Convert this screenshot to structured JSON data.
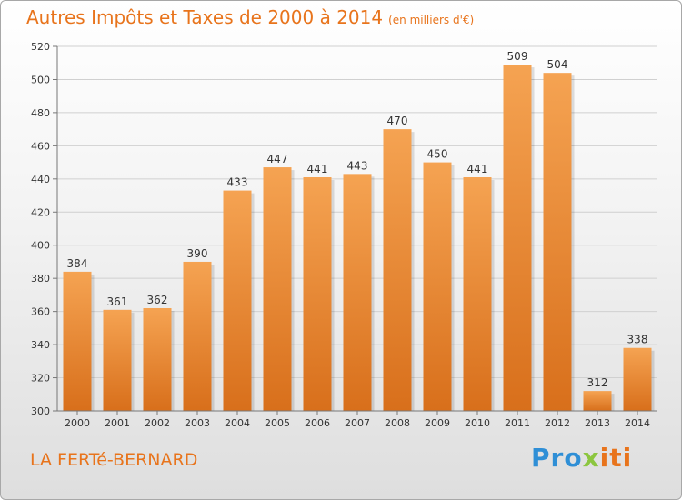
{
  "title": "Autres Impôts et Taxes de 2000 à 2014",
  "subtitle": "(en milliers d'€)",
  "location": "LA FERTé-BERNARD",
  "brand": {
    "p1": "Pro",
    "p2": "x",
    "p3": "iti"
  },
  "colors": {
    "accent": "#e8741c",
    "bar_top": "#f5a352",
    "bar_bottom": "#d86f1b"
  },
  "chart_data": {
    "type": "bar",
    "title": "Autres Impôts et Taxes de 2000 à 2014",
    "subtitle": "(en milliers d'€)",
    "categories": [
      "2000",
      "2001",
      "2002",
      "2003",
      "2004",
      "2005",
      "2006",
      "2007",
      "2008",
      "2009",
      "2010",
      "2011",
      "2012",
      "2013",
      "2014"
    ],
    "values": [
      384,
      361,
      362,
      390,
      433,
      447,
      441,
      443,
      470,
      450,
      441,
      509,
      504,
      312,
      338
    ],
    "ylim": [
      300,
      520
    ],
    "yticks": [
      300,
      320,
      340,
      360,
      380,
      400,
      420,
      440,
      460,
      480,
      500,
      520
    ],
    "grid": true,
    "legend": "none"
  }
}
